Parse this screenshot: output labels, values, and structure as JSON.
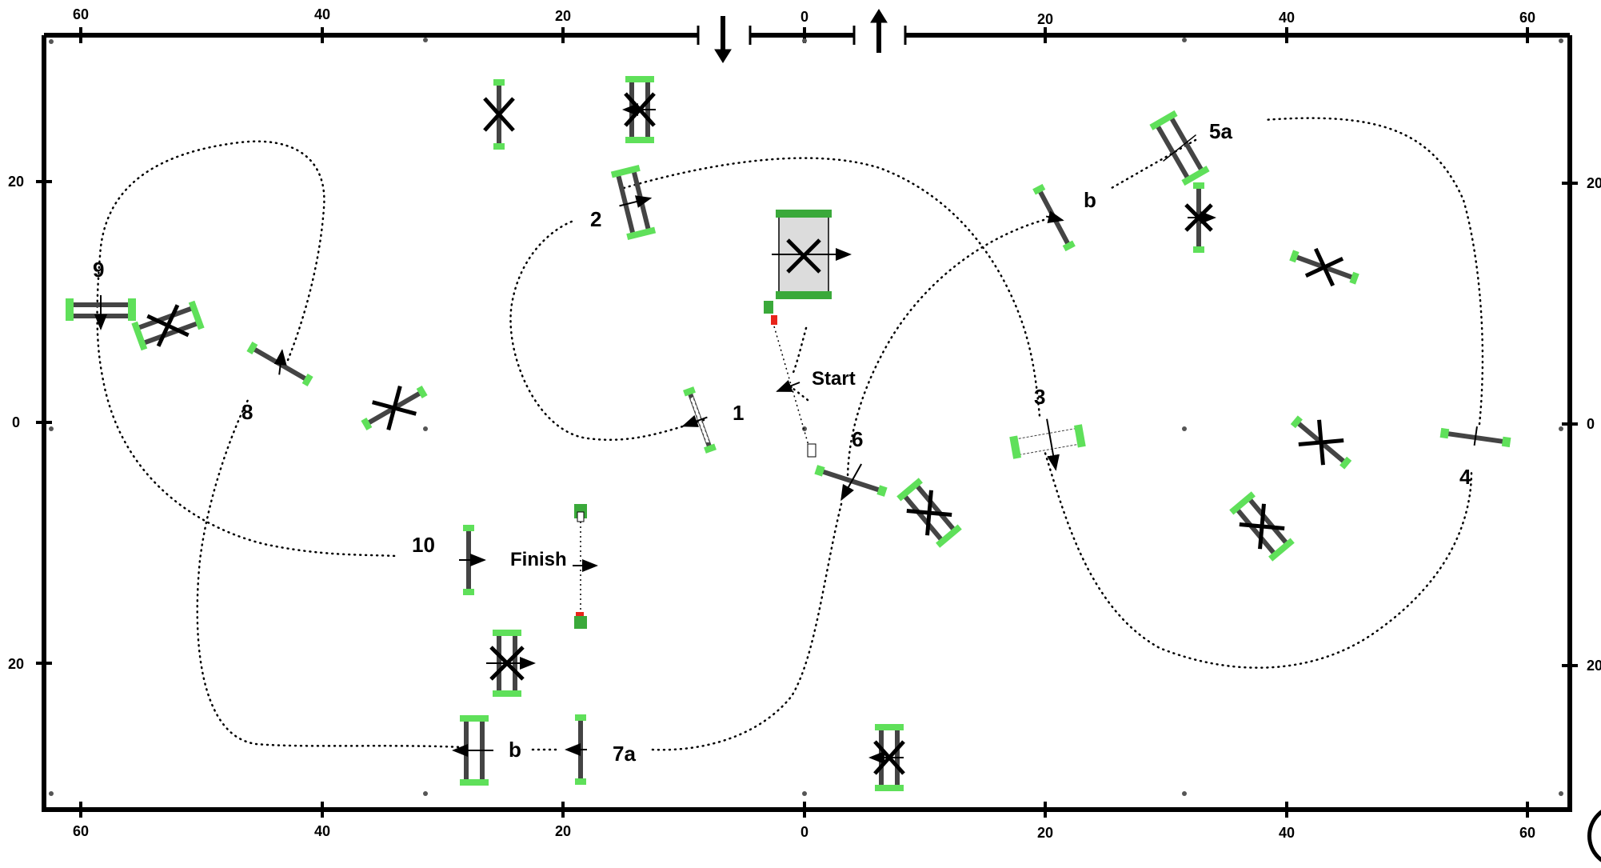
{
  "ruler": {
    "top": [
      "60",
      "40",
      "20",
      "0",
      "20",
      "40",
      "60"
    ],
    "bottom": [
      "60",
      "40",
      "20",
      "0",
      "20",
      "40",
      "60"
    ],
    "left": [
      "20",
      "0",
      "20"
    ],
    "right": [
      "20",
      "0",
      "20"
    ]
  },
  "labels": {
    "start": "Start",
    "finish": "Finish",
    "n1": "1",
    "n2": "2",
    "n3": "3",
    "n4": "4",
    "n5a": "5a",
    "n5b": "b",
    "n6": "6",
    "n7a": "7a",
    "n7b": "b",
    "n8": "8",
    "n9": "9",
    "n10": "10"
  },
  "colors": {
    "wing": "#5fe05a",
    "line": "#000000",
    "path": "#000000",
    "table": "#dcdcdc",
    "start_marker": "#e8241b"
  }
}
